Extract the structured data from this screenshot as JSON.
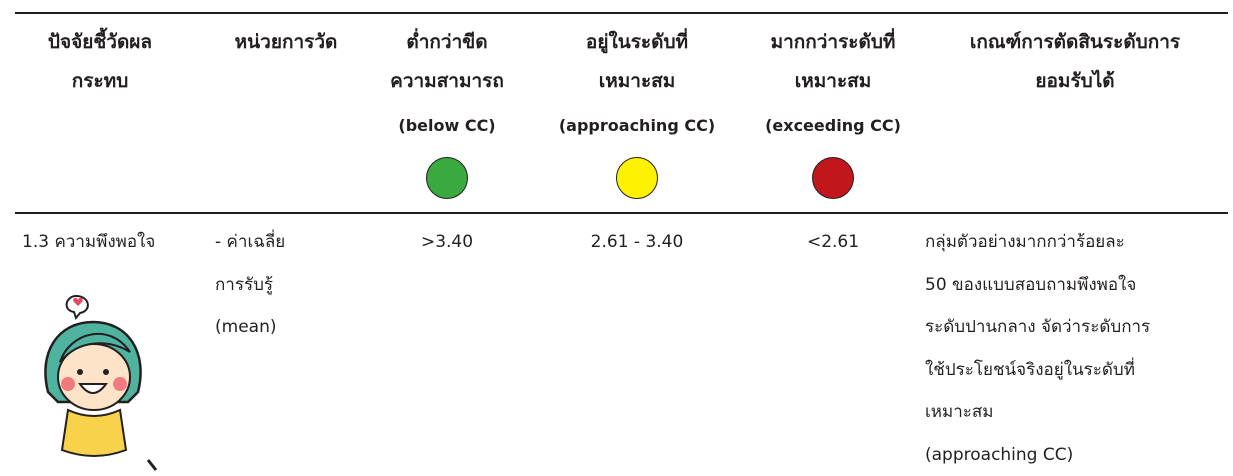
{
  "table": {
    "header": [
      {
        "lines": [
          "ปัจจัยชี้วัดผล",
          "กระทบ"
        ]
      },
      {
        "lines": [
          "หน่วยการวัด"
        ]
      },
      {
        "lines": [
          "ต่ำกว่าขีด",
          "ความสามารถ",
          "(below CC)"
        ],
        "indicator_color": "#3aa93f"
      },
      {
        "lines": [
          "อยู่ในระดับที่",
          "เหมาะสม",
          "(approaching CC)"
        ],
        "indicator_color": "#fff200"
      },
      {
        "lines": [
          "มากกว่าระดับที่",
          "เหมาะสม",
          "(exceeding CC)"
        ],
        "indicator_color": "#c1171c"
      },
      {
        "lines": [
          "เกณฑ์การตัดสินระดับการ",
          "ยอมรับได้"
        ]
      }
    ],
    "rows": [
      [
        {
          "lines": [
            "1.3 ความพึงพอใจ"
          ]
        },
        {
          "lines": [
            "- ค่าเฉลี่ย",
            "การรับรู้",
            "(mean)"
          ]
        },
        {
          "lines": [
            ">3.40"
          ]
        },
        {
          "lines": [
            "2.61 - 3.40"
          ]
        },
        {
          "lines": [
            "<2.61"
          ]
        },
        {
          "lines": [
            "กลุ่มตัวอย่างมากกว่าร้อยละ",
            "50 ของแบบสอบถามพึงพอใจ",
            "ระดับปานกลาง จัดว่าระดับการ",
            "ใช้ประโยชน์จริงอยู่ในระดับที่",
            "เหมาะสม",
            "(approaching CC)"
          ]
        }
      ]
    ]
  }
}
